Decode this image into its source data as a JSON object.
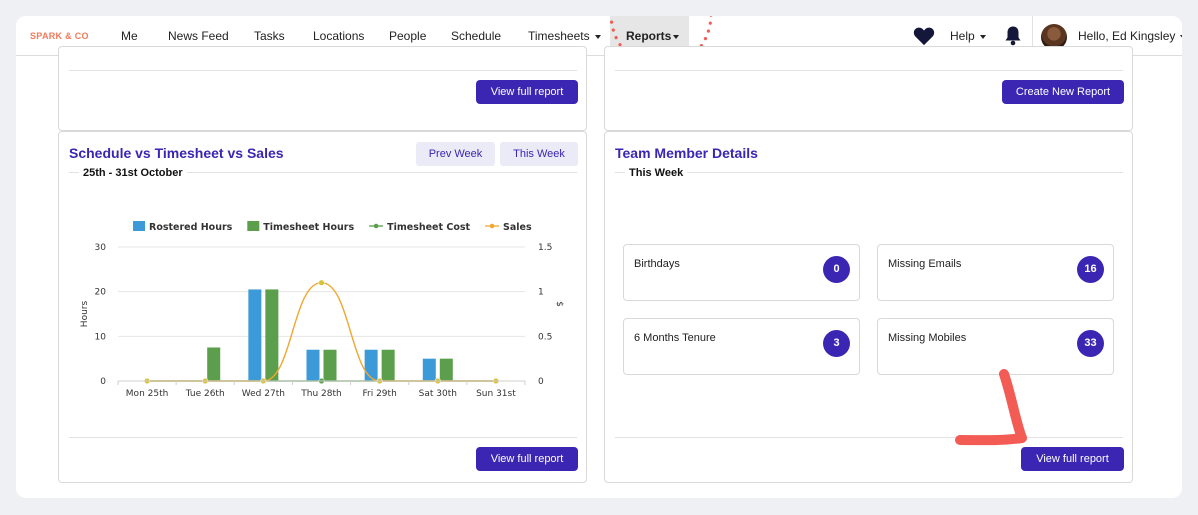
{
  "nav": {
    "brand": "SPARK & CO",
    "items": [
      {
        "label": "Me"
      },
      {
        "label": "News Feed"
      },
      {
        "label": "Tasks"
      },
      {
        "label": "Locations"
      },
      {
        "label": "People"
      },
      {
        "label": "Schedule"
      },
      {
        "label": "Timesheets"
      },
      {
        "label": "Reports"
      }
    ],
    "help_label": "Help",
    "greeting": "Hello, Ed Kingsley",
    "heart_icon": "heart-icon",
    "bell_icon": "bell-icon",
    "accent_color": "#3a26b3",
    "highlight_color": "#f25c54"
  },
  "top_left_card": {
    "button_label": "View full report"
  },
  "top_right_card": {
    "button_label": "Create New Report"
  },
  "schedule_card": {
    "title": "Schedule vs Timesheet vs Sales",
    "subtitle": "25th - 31st October",
    "prev_week_label": "Prev Week",
    "this_week_label": "This Week",
    "button_label": "View full report"
  },
  "team_card": {
    "title": "Team Member Details",
    "subtitle": "This Week",
    "stats": [
      {
        "label": "Birthdays",
        "value": "0"
      },
      {
        "label": "Missing Emails",
        "value": "16"
      },
      {
        "label": "6 Months Tenure",
        "value": "3"
      },
      {
        "label": "Missing Mobiles",
        "value": "33"
      }
    ],
    "button_label": "View full report"
  },
  "chart_data": {
    "type": "bar",
    "categories": [
      "Mon 25th",
      "Tue 26th",
      "Wed 27th",
      "Thu 28th",
      "Fri 29th",
      "Sat 30th",
      "Sun 31st"
    ],
    "series": [
      {
        "name": "Rostered Hours",
        "type": "bar",
        "axis": "left",
        "color": "#3d9ad9",
        "values": [
          0,
          0,
          20.5,
          7,
          7,
          5,
          0
        ]
      },
      {
        "name": "Timesheet Hours",
        "type": "bar",
        "axis": "left",
        "color": "#5b9e4b",
        "values": [
          0,
          7.5,
          20.5,
          7,
          7,
          5,
          0
        ]
      },
      {
        "name": "Timesheet Cost",
        "type": "line",
        "axis": "right",
        "color": "#5b9e4b",
        "values": [
          0,
          0,
          0,
          0,
          0,
          0,
          0
        ]
      },
      {
        "name": "Sales",
        "type": "line",
        "axis": "right",
        "color": "#f0a830",
        "values": [
          0,
          0,
          0,
          1.1,
          0,
          0,
          0
        ]
      }
    ],
    "ylabel": "Hours",
    "y2label": "$",
    "ylim": [
      0,
      30
    ],
    "y2lim": [
      0,
      1.5
    ],
    "yticks": [
      "0",
      "10",
      "20",
      "30"
    ],
    "y2ticks": [
      "0",
      "0.5",
      "1",
      "1.5"
    ],
    "legend_position": "top",
    "grid": true
  }
}
